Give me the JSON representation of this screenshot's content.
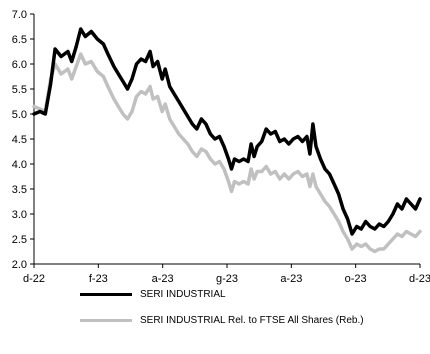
{
  "chart_data": {
    "type": "line",
    "title": "",
    "xlabel": "",
    "ylabel": "",
    "ylim": [
      2.0,
      7.0
    ],
    "yticks": [
      "2.0",
      "2.5",
      "3.0",
      "3.5",
      "4.0",
      "4.5",
      "5.0",
      "5.5",
      "6.0",
      "6.5",
      "7.0"
    ],
    "xticks": [
      "d-22",
      "f-23",
      "a-23",
      "g-23",
      "a-23",
      "o-23",
      "d-23"
    ],
    "grid": false,
    "legend_position": "bottom",
    "series": [
      {
        "name": "SERI INDUSTRIAL",
        "color": "#000000",
        "points": [
          [
            0.0,
            5.0
          ],
          [
            0.08,
            5.05
          ],
          [
            0.15,
            5.0
          ],
          [
            0.22,
            5.6
          ],
          [
            0.28,
            6.3
          ],
          [
            0.36,
            6.15
          ],
          [
            0.45,
            6.25
          ],
          [
            0.5,
            6.05
          ],
          [
            0.56,
            6.35
          ],
          [
            0.62,
            6.7
          ],
          [
            0.68,
            6.55
          ],
          [
            0.76,
            6.65
          ],
          [
            0.84,
            6.5
          ],
          [
            0.92,
            6.4
          ],
          [
            0.98,
            6.2
          ],
          [
            1.06,
            5.95
          ],
          [
            1.12,
            5.8
          ],
          [
            1.18,
            5.65
          ],
          [
            1.24,
            5.5
          ],
          [
            1.3,
            5.7
          ],
          [
            1.36,
            6.0
          ],
          [
            1.42,
            6.1
          ],
          [
            1.48,
            6.05
          ],
          [
            1.54,
            6.25
          ],
          [
            1.58,
            5.95
          ],
          [
            1.64,
            6.05
          ],
          [
            1.7,
            5.7
          ],
          [
            1.74,
            5.9
          ],
          [
            1.8,
            5.55
          ],
          [
            1.86,
            5.4
          ],
          [
            1.92,
            5.25
          ],
          [
            1.98,
            5.1
          ],
          [
            2.04,
            4.95
          ],
          [
            2.1,
            4.8
          ],
          [
            2.16,
            4.7
          ],
          [
            2.22,
            4.9
          ],
          [
            2.28,
            4.8
          ],
          [
            2.34,
            4.6
          ],
          [
            2.4,
            4.5
          ],
          [
            2.46,
            4.55
          ],
          [
            2.52,
            4.35
          ],
          [
            2.58,
            4.1
          ],
          [
            2.62,
            3.9
          ],
          [
            2.66,
            4.1
          ],
          [
            2.72,
            4.05
          ],
          [
            2.78,
            4.1
          ],
          [
            2.84,
            4.05
          ],
          [
            2.88,
            4.4
          ],
          [
            2.92,
            4.15
          ],
          [
            2.96,
            4.35
          ],
          [
            3.02,
            4.45
          ],
          [
            3.08,
            4.7
          ],
          [
            3.14,
            4.6
          ],
          [
            3.2,
            4.65
          ],
          [
            3.26,
            4.45
          ],
          [
            3.32,
            4.5
          ],
          [
            3.38,
            4.4
          ],
          [
            3.44,
            4.5
          ],
          [
            3.5,
            4.55
          ],
          [
            3.56,
            4.45
          ],
          [
            3.62,
            4.55
          ],
          [
            3.66,
            4.2
          ],
          [
            3.7,
            4.8
          ],
          [
            3.74,
            4.35
          ],
          [
            3.8,
            4.1
          ],
          [
            3.86,
            3.9
          ],
          [
            3.92,
            3.8
          ],
          [
            3.98,
            3.6
          ],
          [
            4.04,
            3.4
          ],
          [
            4.1,
            3.1
          ],
          [
            4.16,
            2.9
          ],
          [
            4.22,
            2.6
          ],
          [
            4.28,
            2.75
          ],
          [
            4.34,
            2.7
          ],
          [
            4.4,
            2.85
          ],
          [
            4.46,
            2.75
          ],
          [
            4.52,
            2.7
          ],
          [
            4.58,
            2.8
          ],
          [
            4.64,
            2.75
          ],
          [
            4.7,
            2.85
          ],
          [
            4.76,
            3.0
          ],
          [
            4.82,
            3.2
          ],
          [
            4.88,
            3.1
          ],
          [
            4.94,
            3.3
          ],
          [
            5.0,
            3.2
          ],
          [
            5.06,
            3.1
          ],
          [
            5.12,
            3.3
          ]
        ]
      },
      {
        "name": "SERI INDUSTRIAL Rel. to FTSE All Shares (Reb.)",
        "color": "#c0c0c0",
        "points": [
          [
            0.0,
            5.15
          ],
          [
            0.08,
            5.1
          ],
          [
            0.15,
            5.05
          ],
          [
            0.22,
            5.7
          ],
          [
            0.28,
            6.0
          ],
          [
            0.36,
            5.8
          ],
          [
            0.45,
            5.9
          ],
          [
            0.5,
            5.7
          ],
          [
            0.56,
            5.95
          ],
          [
            0.62,
            6.2
          ],
          [
            0.68,
            6.0
          ],
          [
            0.76,
            6.05
          ],
          [
            0.84,
            5.85
          ],
          [
            0.92,
            5.75
          ],
          [
            0.98,
            5.55
          ],
          [
            1.06,
            5.3
          ],
          [
            1.12,
            5.15
          ],
          [
            1.18,
            5.0
          ],
          [
            1.24,
            4.9
          ],
          [
            1.3,
            5.05
          ],
          [
            1.36,
            5.35
          ],
          [
            1.42,
            5.45
          ],
          [
            1.48,
            5.4
          ],
          [
            1.54,
            5.55
          ],
          [
            1.58,
            5.3
          ],
          [
            1.64,
            5.35
          ],
          [
            1.7,
            5.05
          ],
          [
            1.74,
            5.2
          ],
          [
            1.8,
            4.9
          ],
          [
            1.86,
            4.75
          ],
          [
            1.92,
            4.6
          ],
          [
            1.98,
            4.5
          ],
          [
            2.04,
            4.4
          ],
          [
            2.1,
            4.25
          ],
          [
            2.16,
            4.15
          ],
          [
            2.22,
            4.3
          ],
          [
            2.28,
            4.25
          ],
          [
            2.34,
            4.1
          ],
          [
            2.4,
            4.0
          ],
          [
            2.46,
            4.05
          ],
          [
            2.52,
            3.9
          ],
          [
            2.58,
            3.65
          ],
          [
            2.62,
            3.45
          ],
          [
            2.66,
            3.65
          ],
          [
            2.72,
            3.6
          ],
          [
            2.78,
            3.65
          ],
          [
            2.84,
            3.6
          ],
          [
            2.88,
            3.9
          ],
          [
            2.92,
            3.7
          ],
          [
            2.96,
            3.85
          ],
          [
            3.02,
            3.85
          ],
          [
            3.08,
            3.95
          ],
          [
            3.14,
            3.8
          ],
          [
            3.2,
            3.85
          ],
          [
            3.26,
            3.7
          ],
          [
            3.32,
            3.8
          ],
          [
            3.38,
            3.7
          ],
          [
            3.44,
            3.8
          ],
          [
            3.5,
            3.85
          ],
          [
            3.56,
            3.75
          ],
          [
            3.62,
            3.8
          ],
          [
            3.66,
            3.55
          ],
          [
            3.7,
            3.8
          ],
          [
            3.74,
            3.55
          ],
          [
            3.8,
            3.4
          ],
          [
            3.86,
            3.25
          ],
          [
            3.92,
            3.15
          ],
          [
            3.98,
            3.0
          ],
          [
            4.04,
            2.85
          ],
          [
            4.1,
            2.65
          ],
          [
            4.16,
            2.5
          ],
          [
            4.22,
            2.3
          ],
          [
            4.28,
            2.4
          ],
          [
            4.34,
            2.35
          ],
          [
            4.4,
            2.4
          ],
          [
            4.46,
            2.3
          ],
          [
            4.52,
            2.25
          ],
          [
            4.58,
            2.3
          ],
          [
            4.64,
            2.3
          ],
          [
            4.7,
            2.4
          ],
          [
            4.76,
            2.5
          ],
          [
            4.82,
            2.6
          ],
          [
            4.88,
            2.55
          ],
          [
            4.94,
            2.65
          ],
          [
            5.0,
            2.6
          ],
          [
            5.06,
            2.55
          ],
          [
            5.12,
            2.65
          ]
        ]
      }
    ]
  }
}
